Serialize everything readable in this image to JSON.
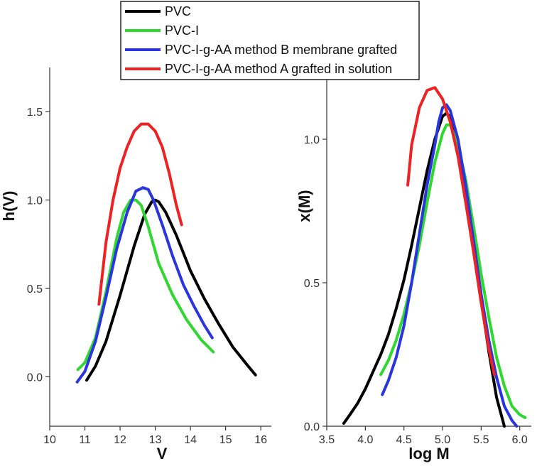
{
  "chart_data": [
    {
      "type": "line",
      "id": "left",
      "xlabel": "V",
      "ylabel": "h(V)",
      "xlim": [
        10,
        16.3
      ],
      "ylim": [
        -0.28,
        1.75
      ],
      "xticks": [
        10,
        11,
        12,
        13,
        14,
        15,
        16
      ],
      "yticks": [
        0.0,
        0.5,
        1.0,
        1.5
      ],
      "xtick_labels": [
        "10",
        "11",
        "12",
        "13",
        "14",
        "15",
        "16"
      ],
      "ytick_labels": [
        "0.0",
        "0.5",
        "1.0",
        "1.5"
      ],
      "series": [
        {
          "name": "PVC",
          "color": "#000000",
          "x": [
            11.05,
            11.3,
            11.6,
            12.0,
            12.4,
            12.7,
            12.9,
            13.0,
            13.1,
            13.3,
            13.6,
            14.0,
            14.4,
            14.8,
            15.2,
            15.6,
            15.85
          ],
          "y": [
            -0.02,
            0.06,
            0.2,
            0.46,
            0.74,
            0.92,
            0.99,
            1.0,
            0.99,
            0.93,
            0.8,
            0.6,
            0.44,
            0.3,
            0.17,
            0.07,
            0.01
          ]
        },
        {
          "name": "PVC-I",
          "color": "#2fd82f",
          "x": [
            10.8,
            11.0,
            11.3,
            11.6,
            11.9,
            12.1,
            12.3,
            12.45,
            12.6,
            12.8,
            13.1,
            13.5,
            13.9,
            14.3,
            14.65
          ],
          "y": [
            0.04,
            0.08,
            0.22,
            0.48,
            0.78,
            0.93,
            1.0,
            1.0,
            0.97,
            0.85,
            0.64,
            0.46,
            0.32,
            0.21,
            0.14
          ]
        },
        {
          "name": "PVC-I-g-AA method B membrane grafted",
          "color": "#2a35e0",
          "x": [
            10.78,
            11.0,
            11.3,
            11.6,
            11.9,
            12.2,
            12.45,
            12.65,
            12.8,
            12.95,
            13.2,
            13.5,
            13.8,
            14.1,
            14.4,
            14.62
          ],
          "y": [
            -0.03,
            0.03,
            0.2,
            0.45,
            0.72,
            0.93,
            1.05,
            1.07,
            1.06,
            1.0,
            0.86,
            0.68,
            0.52,
            0.4,
            0.29,
            0.22
          ]
        },
        {
          "name": "PVC-I-g-AA method A grafted in solution",
          "color": "#ee2222",
          "x": [
            11.4,
            11.6,
            11.8,
            12.0,
            12.2,
            12.4,
            12.6,
            12.8,
            13.0,
            13.2,
            13.4,
            13.6,
            13.75
          ],
          "y": [
            0.41,
            0.76,
            1.0,
            1.18,
            1.3,
            1.39,
            1.43,
            1.43,
            1.39,
            1.3,
            1.15,
            0.97,
            0.86
          ]
        }
      ]
    },
    {
      "type": "line",
      "id": "right",
      "xlabel": "log M",
      "ylabel": "x(M)",
      "xlim": [
        3.5,
        6.15
      ],
      "ylim": [
        0.0,
        1.25
      ],
      "xticks": [
        3.5,
        4.0,
        4.5,
        5.0,
        5.5,
        6.0
      ],
      "yticks": [
        0.0,
        0.5,
        1.0
      ],
      "xtick_labels": [
        "3.5",
        "4.0",
        "4.5",
        "5.0",
        "5.5",
        "6.0"
      ],
      "ytick_labels": [
        "0.0",
        "0.5",
        "1.0"
      ],
      "series": [
        {
          "name": "PVC",
          "color": "#000000",
          "x": [
            3.72,
            3.8,
            3.9,
            4.0,
            4.1,
            4.2,
            4.3,
            4.4,
            4.5,
            4.6,
            4.7,
            4.8,
            4.9,
            5.0,
            5.05,
            5.1,
            5.2,
            5.3,
            5.4,
            5.5,
            5.6,
            5.7,
            5.8
          ],
          "y": [
            0.01,
            0.04,
            0.08,
            0.13,
            0.19,
            0.25,
            0.32,
            0.41,
            0.51,
            0.63,
            0.76,
            0.89,
            1.0,
            1.08,
            1.09,
            1.08,
            0.99,
            0.84,
            0.64,
            0.44,
            0.26,
            0.1,
            0.0
          ]
        },
        {
          "name": "PVC-I",
          "color": "#2fd82f",
          "x": [
            4.2,
            4.3,
            4.4,
            4.5,
            4.6,
            4.7,
            4.8,
            4.9,
            5.0,
            5.05,
            5.1,
            5.2,
            5.3,
            5.4,
            5.5,
            5.6,
            5.7,
            5.8,
            5.9,
            6.0,
            6.07
          ],
          "y": [
            0.18,
            0.23,
            0.3,
            0.39,
            0.5,
            0.63,
            0.78,
            0.92,
            1.02,
            1.05,
            1.05,
            0.98,
            0.86,
            0.7,
            0.53,
            0.38,
            0.24,
            0.14,
            0.07,
            0.04,
            0.03
          ]
        },
        {
          "name": "PVC-I-g-AA method B membrane grafted",
          "color": "#2a35e0",
          "x": [
            4.22,
            4.3,
            4.4,
            4.5,
            4.6,
            4.7,
            4.8,
            4.9,
            4.95,
            5.0,
            5.05,
            5.1,
            5.2,
            5.3,
            5.4,
            5.5,
            5.6,
            5.7,
            5.8,
            5.9,
            5.96
          ],
          "y": [
            0.11,
            0.16,
            0.24,
            0.35,
            0.5,
            0.67,
            0.84,
            0.98,
            1.06,
            1.11,
            1.12,
            1.1,
            1.0,
            0.84,
            0.65,
            0.46,
            0.3,
            0.17,
            0.07,
            0.02,
            0.0
          ]
        },
        {
          "name": "PVC-I-g-AA method A grafted in solution",
          "color": "#ee2222",
          "x": [
            4.55,
            4.6,
            4.7,
            4.8,
            4.9,
            5.0,
            5.1,
            5.2,
            5.3,
            5.4,
            5.5,
            5.6,
            5.67
          ],
          "y": [
            0.84,
            0.98,
            1.11,
            1.17,
            1.18,
            1.14,
            1.06,
            0.94,
            0.78,
            0.61,
            0.43,
            0.27,
            0.18
          ]
        }
      ]
    }
  ],
  "legend": {
    "placement": "top-center",
    "items": [
      {
        "label": "PVC",
        "color": "#000000"
      },
      {
        "label": "PVC-I",
        "color": "#2fd82f"
      },
      {
        "label": "PVC-I-g-AA method B membrane grafted",
        "color": "#2a35e0"
      },
      {
        "label": "PVC-I-g-AA method A grafted in solution",
        "color": "#ee2222"
      }
    ]
  }
}
